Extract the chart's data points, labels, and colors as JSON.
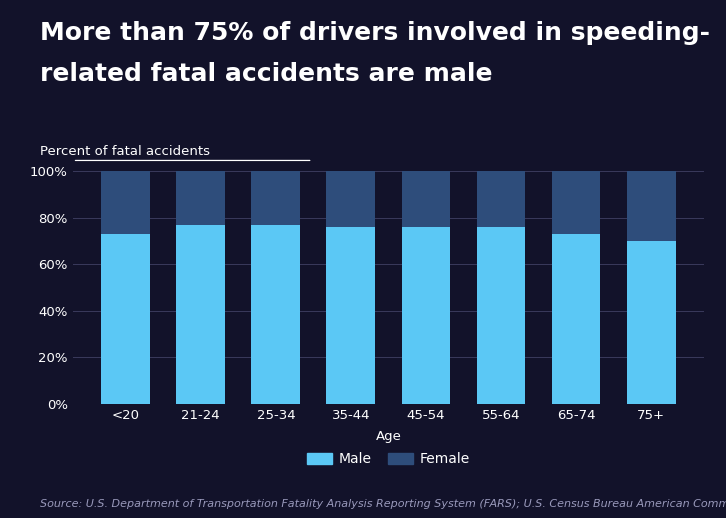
{
  "categories": [
    "<20",
    "21-24",
    "25-34",
    "35-44",
    "45-54",
    "55-64",
    "65-74",
    "75+"
  ],
  "male_pct": [
    73,
    77,
    77,
    76,
    76,
    76,
    73,
    70
  ],
  "female_pct": [
    27,
    23,
    23,
    24,
    24,
    24,
    27,
    30
  ],
  "male_color": "#5bc8f5",
  "female_color": "#2e4d7b",
  "background_color": "#12122a",
  "text_color": "#ffffff",
  "grid_color": "#3a3a5c",
  "title_line1": "More than 75% of drivers involved in speeding-",
  "title_line2": "related fatal accidents are male",
  "ylabel_label": "Percent of fatal accidents",
  "xlabel_label": "Age",
  "source_text": "Source: U.S. Department of Transportation Fatality Analysis Reporting System (FARS); U.S. Census Bureau American Community Survey",
  "title_fontsize": 18,
  "label_fontsize": 9.5,
  "tick_fontsize": 9.5,
  "legend_fontsize": 10,
  "source_fontsize": 8,
  "ylim": [
    0,
    100
  ],
  "yticks": [
    0,
    20,
    40,
    60,
    80,
    100
  ],
  "ytick_labels": [
    "0%",
    "20%",
    "40%",
    "60%",
    "80%",
    "100%"
  ]
}
